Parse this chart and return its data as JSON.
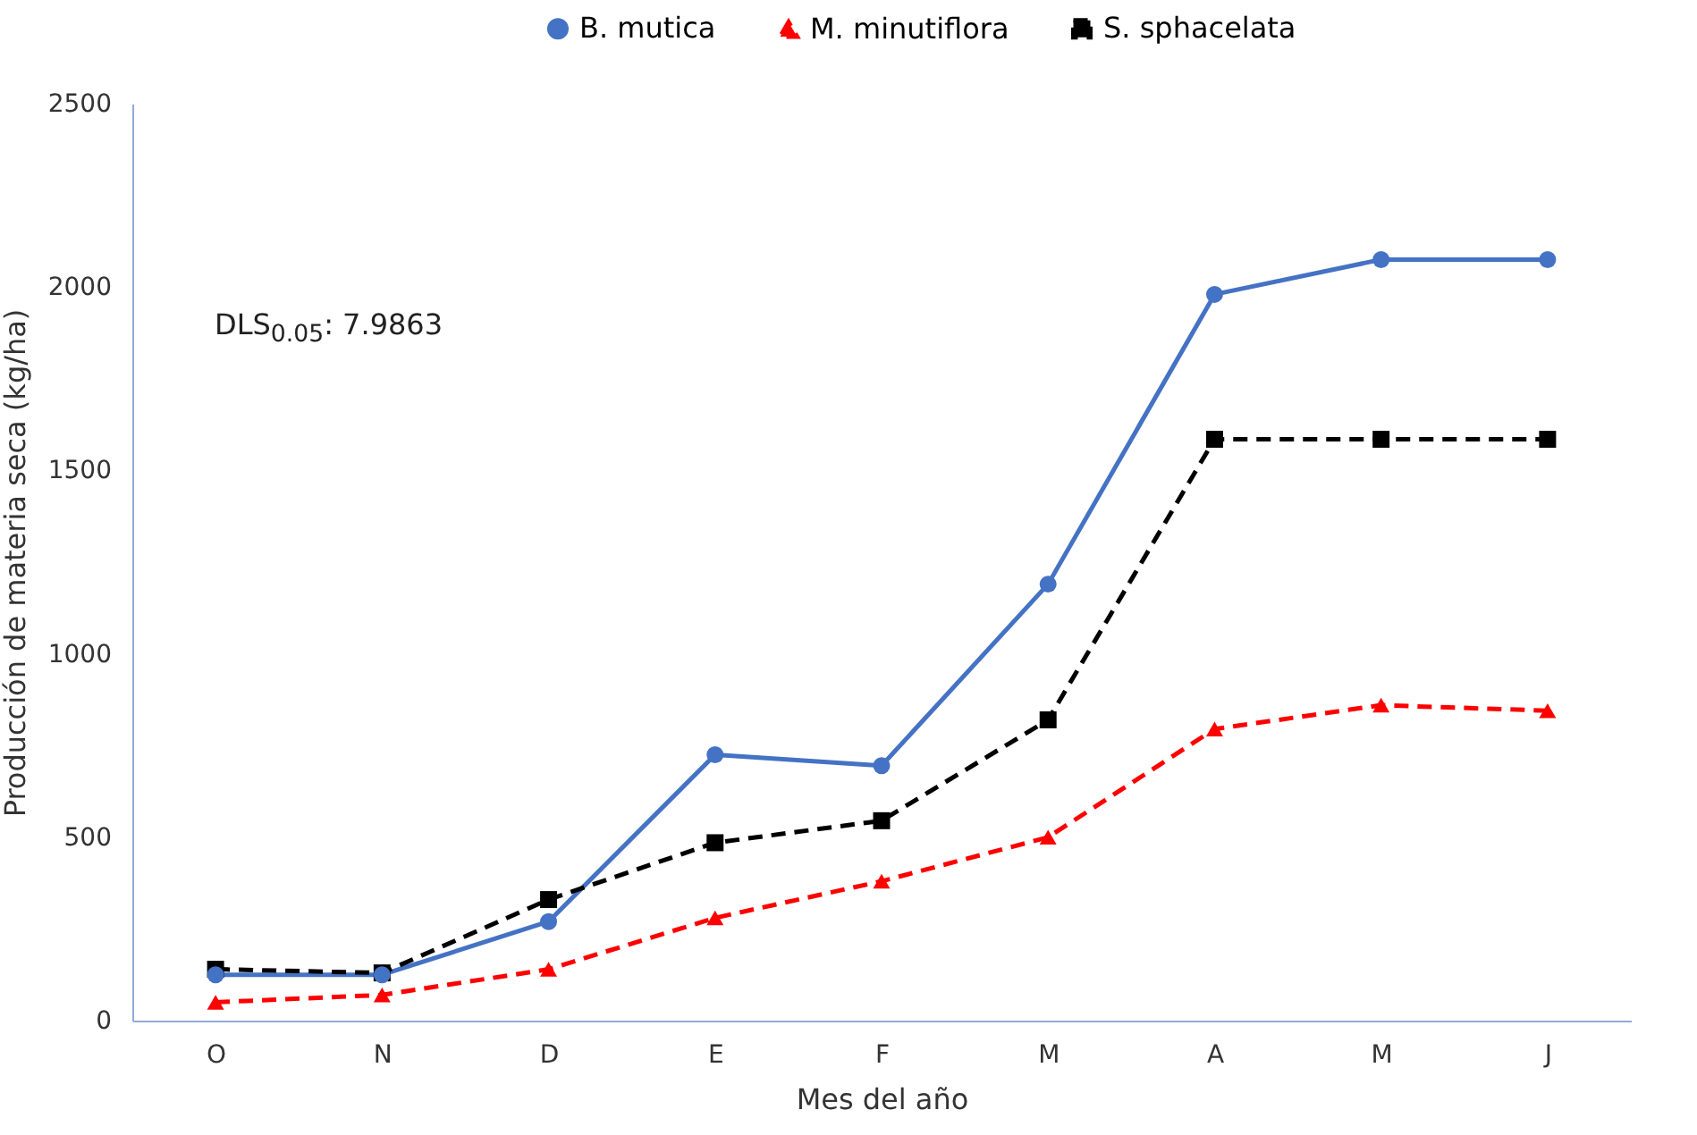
{
  "chart_data": {
    "type": "line",
    "xlabel": "Mes del año",
    "ylabel": "Producción de materia seca (kg/ha)",
    "categories": [
      "O",
      "N",
      "D",
      "E",
      "F",
      "M",
      "A",
      "M",
      "J"
    ],
    "series": [
      {
        "name": "B. mutica",
        "color": "#4472c4",
        "marker": "circle",
        "line_style": "solid",
        "values": [
          125,
          125,
          270,
          725,
          695,
          1190,
          1980,
          2075,
          2075
        ]
      },
      {
        "name": "M. minutiflora",
        "color": "#ff0000",
        "marker": "triangle",
        "line_style": "dashed",
        "values": [
          50,
          70,
          140,
          280,
          380,
          500,
          795,
          860,
          845
        ]
      },
      {
        "name": "S. sphacelata",
        "color": "#000000",
        "marker": "square",
        "line_style": "dashed",
        "values": [
          140,
          130,
          330,
          485,
          545,
          820,
          1585,
          1585,
          1585
        ]
      }
    ],
    "ylim": [
      0,
      2500
    ],
    "yticks": [
      0,
      500,
      1000,
      1500,
      2000,
      2500
    ],
    "annotations": [
      "DLS$_{0.05}$: 7.9863"
    ],
    "legend": "top",
    "grid": false
  }
}
